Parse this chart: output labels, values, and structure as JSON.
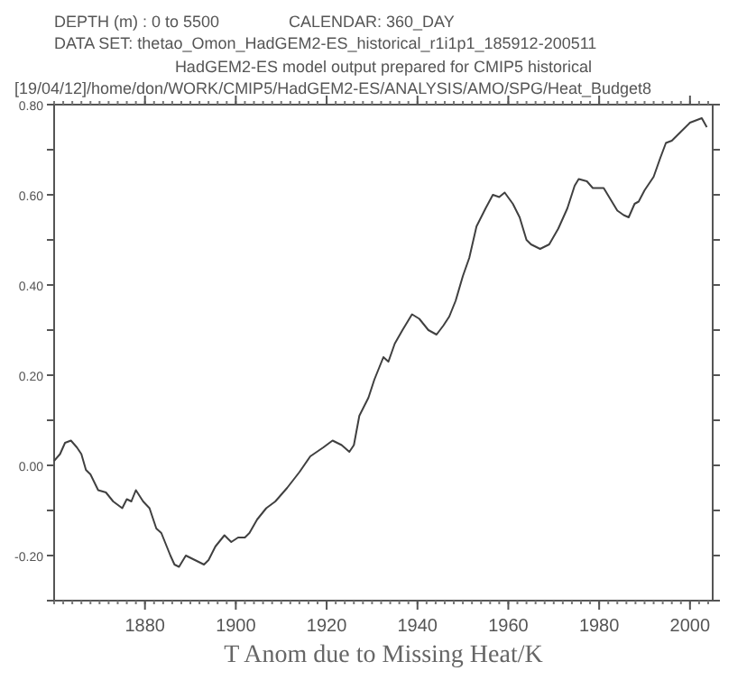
{
  "chart_data": {
    "type": "line",
    "xlabel": "T Anom due to Missing Heat/K",
    "annotations": [
      "DEPTH (m) : 0 to 5500",
      "CALENDAR: 360_DAY",
      "DATA SET: thetao_Omon_HadGEM2-ES_historical_r1i1p1_185912-200511",
      "HadGEM2-ES model output prepared for CMIP5 historical",
      "[19/04/12]/home/don/WORK/CMIP5/HadGEM2-ES/ANALYSIS/AMO/SPG/Heat_Budget8"
    ],
    "xlim": [
      1860,
      2005
    ],
    "xticks": [
      1880,
      1900,
      1920,
      1940,
      1960,
      1980,
      2000
    ],
    "ylim": [
      -0.3,
      0.8
    ],
    "yticks": [
      {
        "value": -0.3,
        "label": null
      },
      {
        "value": -0.2,
        "label": "-0.20"
      },
      {
        "value": -0.1,
        "label": null
      },
      {
        "value": 0,
        "label": "0.00"
      },
      {
        "value": 0.1,
        "label": null
      },
      {
        "value": 0.2,
        "label": "0.20"
      },
      {
        "value": 0.3,
        "label": null
      },
      {
        "value": 0.4,
        "label": "0.40"
      },
      {
        "value": 0.5,
        "label": null
      },
      {
        "value": 0.6,
        "label": "0.60"
      },
      {
        "value": 0.7,
        "label": null
      },
      {
        "value": 0.8,
        "label": "0.80"
      }
    ],
    "line_style": "solid",
    "series": [
      {
        "color": "#404040",
        "x": [
          1860,
          1861.3,
          1862.4,
          1863.7,
          1865,
          1866,
          1867,
          1868,
          1869.7,
          1871.4,
          1873,
          1875,
          1876,
          1877,
          1878,
          1879.6,
          1881,
          1882.5,
          1883.6,
          1885.6,
          1886.5,
          1887.5,
          1889,
          1891,
          1893,
          1894,
          1895.5,
          1897.5,
          1899,
          1900.5,
          1902,
          1903,
          1904.7,
          1906.7,
          1908.7,
          1911.3,
          1914,
          1916.4,
          1919.3,
          1921.3,
          1923.3,
          1925,
          1926,
          1927.2,
          1929.2,
          1930.5,
          1932.5,
          1933.6,
          1935,
          1936.7,
          1938.8,
          1940.4,
          1942.4,
          1944.2,
          1945.7,
          1947,
          1948.4,
          1950,
          1951.4,
          1953,
          1955,
          1956.6,
          1958,
          1959.2,
          1961,
          1962.5,
          1964,
          1965,
          1967,
          1969,
          1971,
          1973,
          1974.6,
          1975.5,
          1977.3,
          1978.6,
          1981,
          1982.5,
          1984,
          1985.4,
          1986.5,
          1987.8,
          1988.7,
          1990,
          1992,
          1993.4,
          1994.7,
          1996,
          1998,
          2000,
          2002.6,
          2003.7
        ],
        "values": [
          0.01,
          0.025,
          0.05,
          0.055,
          0.04,
          0.025,
          -0.01,
          -0.02,
          -0.055,
          -0.06,
          -0.08,
          -0.095,
          -0.075,
          -0.08,
          -0.055,
          -0.08,
          -0.095,
          -0.14,
          -0.15,
          -0.2,
          -0.22,
          -0.225,
          -0.2,
          -0.21,
          -0.22,
          -0.21,
          -0.18,
          -0.155,
          -0.17,
          -0.16,
          -0.16,
          -0.15,
          -0.12,
          -0.095,
          -0.08,
          -0.05,
          -0.015,
          0.02,
          0.04,
          0.055,
          0.045,
          0.03,
          0.045,
          0.11,
          0.15,
          0.19,
          0.24,
          0.23,
          0.27,
          0.3,
          0.335,
          0.325,
          0.3,
          0.29,
          0.31,
          0.33,
          0.365,
          0.42,
          0.46,
          0.53,
          0.57,
          0.6,
          0.595,
          0.605,
          0.58,
          0.55,
          0.5,
          0.49,
          0.48,
          0.49,
          0.525,
          0.57,
          0.62,
          0.635,
          0.63,
          0.615,
          0.615,
          0.59,
          0.565,
          0.555,
          0.55,
          0.58,
          0.585,
          0.61,
          0.64,
          0.68,
          0.715,
          0.72,
          0.74,
          0.76,
          0.77,
          0.75
        ]
      }
    ]
  }
}
